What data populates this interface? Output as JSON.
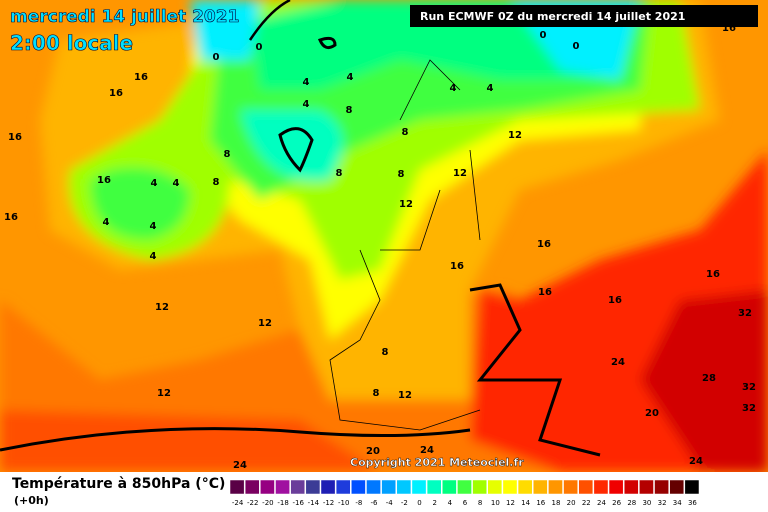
{
  "header": {
    "date_line": "mercredi 14 juillet 2021",
    "time_line": "2:00 locale",
    "run_label": "Run ECMWF 0Z du mercredi 14 juillet 2021",
    "copyright": "Copyright 2021 Meteociel.fr"
  },
  "legend": {
    "title": "Température à 850hPa (°C)",
    "lead": "(+0h)",
    "scale": [
      -24,
      -22,
      -20,
      -18,
      -16,
      -14,
      -12,
      -10,
      -8,
      -6,
      -4,
      -2,
      0,
      2,
      4,
      6,
      8,
      10,
      12,
      14,
      16,
      18,
      20,
      22,
      24,
      26,
      28,
      30,
      32,
      34,
      36
    ],
    "colors": [
      "#5a0046",
      "#7a0060",
      "#960082",
      "#a010a0",
      "#6a3d9a",
      "#3c3c96",
      "#1e1eb4",
      "#1e3cdc",
      "#0050ff",
      "#0078ff",
      "#00a0ff",
      "#00c8ff",
      "#00f0ff",
      "#00ffc0",
      "#00ff80",
      "#40ff40",
      "#a0ff00",
      "#e6ff00",
      "#ffff00",
      "#ffdc00",
      "#ffb400",
      "#ff9600",
      "#ff7800",
      "#ff5000",
      "#ff2800",
      "#f00000",
      "#d20000",
      "#b40000",
      "#960000",
      "#640000",
      "#000000"
    ]
  },
  "map": {
    "contour_labels": [
      16,
      16,
      16,
      16,
      16,
      4,
      4,
      4,
      4,
      4,
      8,
      8,
      4,
      4,
      8,
      4,
      8,
      8,
      8,
      12,
      12,
      12,
      4,
      4,
      0,
      0,
      0,
      0,
      16,
      16,
      16,
      16,
      16,
      16,
      32,
      32,
      32,
      28,
      24,
      20,
      24,
      24,
      20,
      12,
      8,
      8,
      12,
      12,
      12,
      24
    ]
  }
}
